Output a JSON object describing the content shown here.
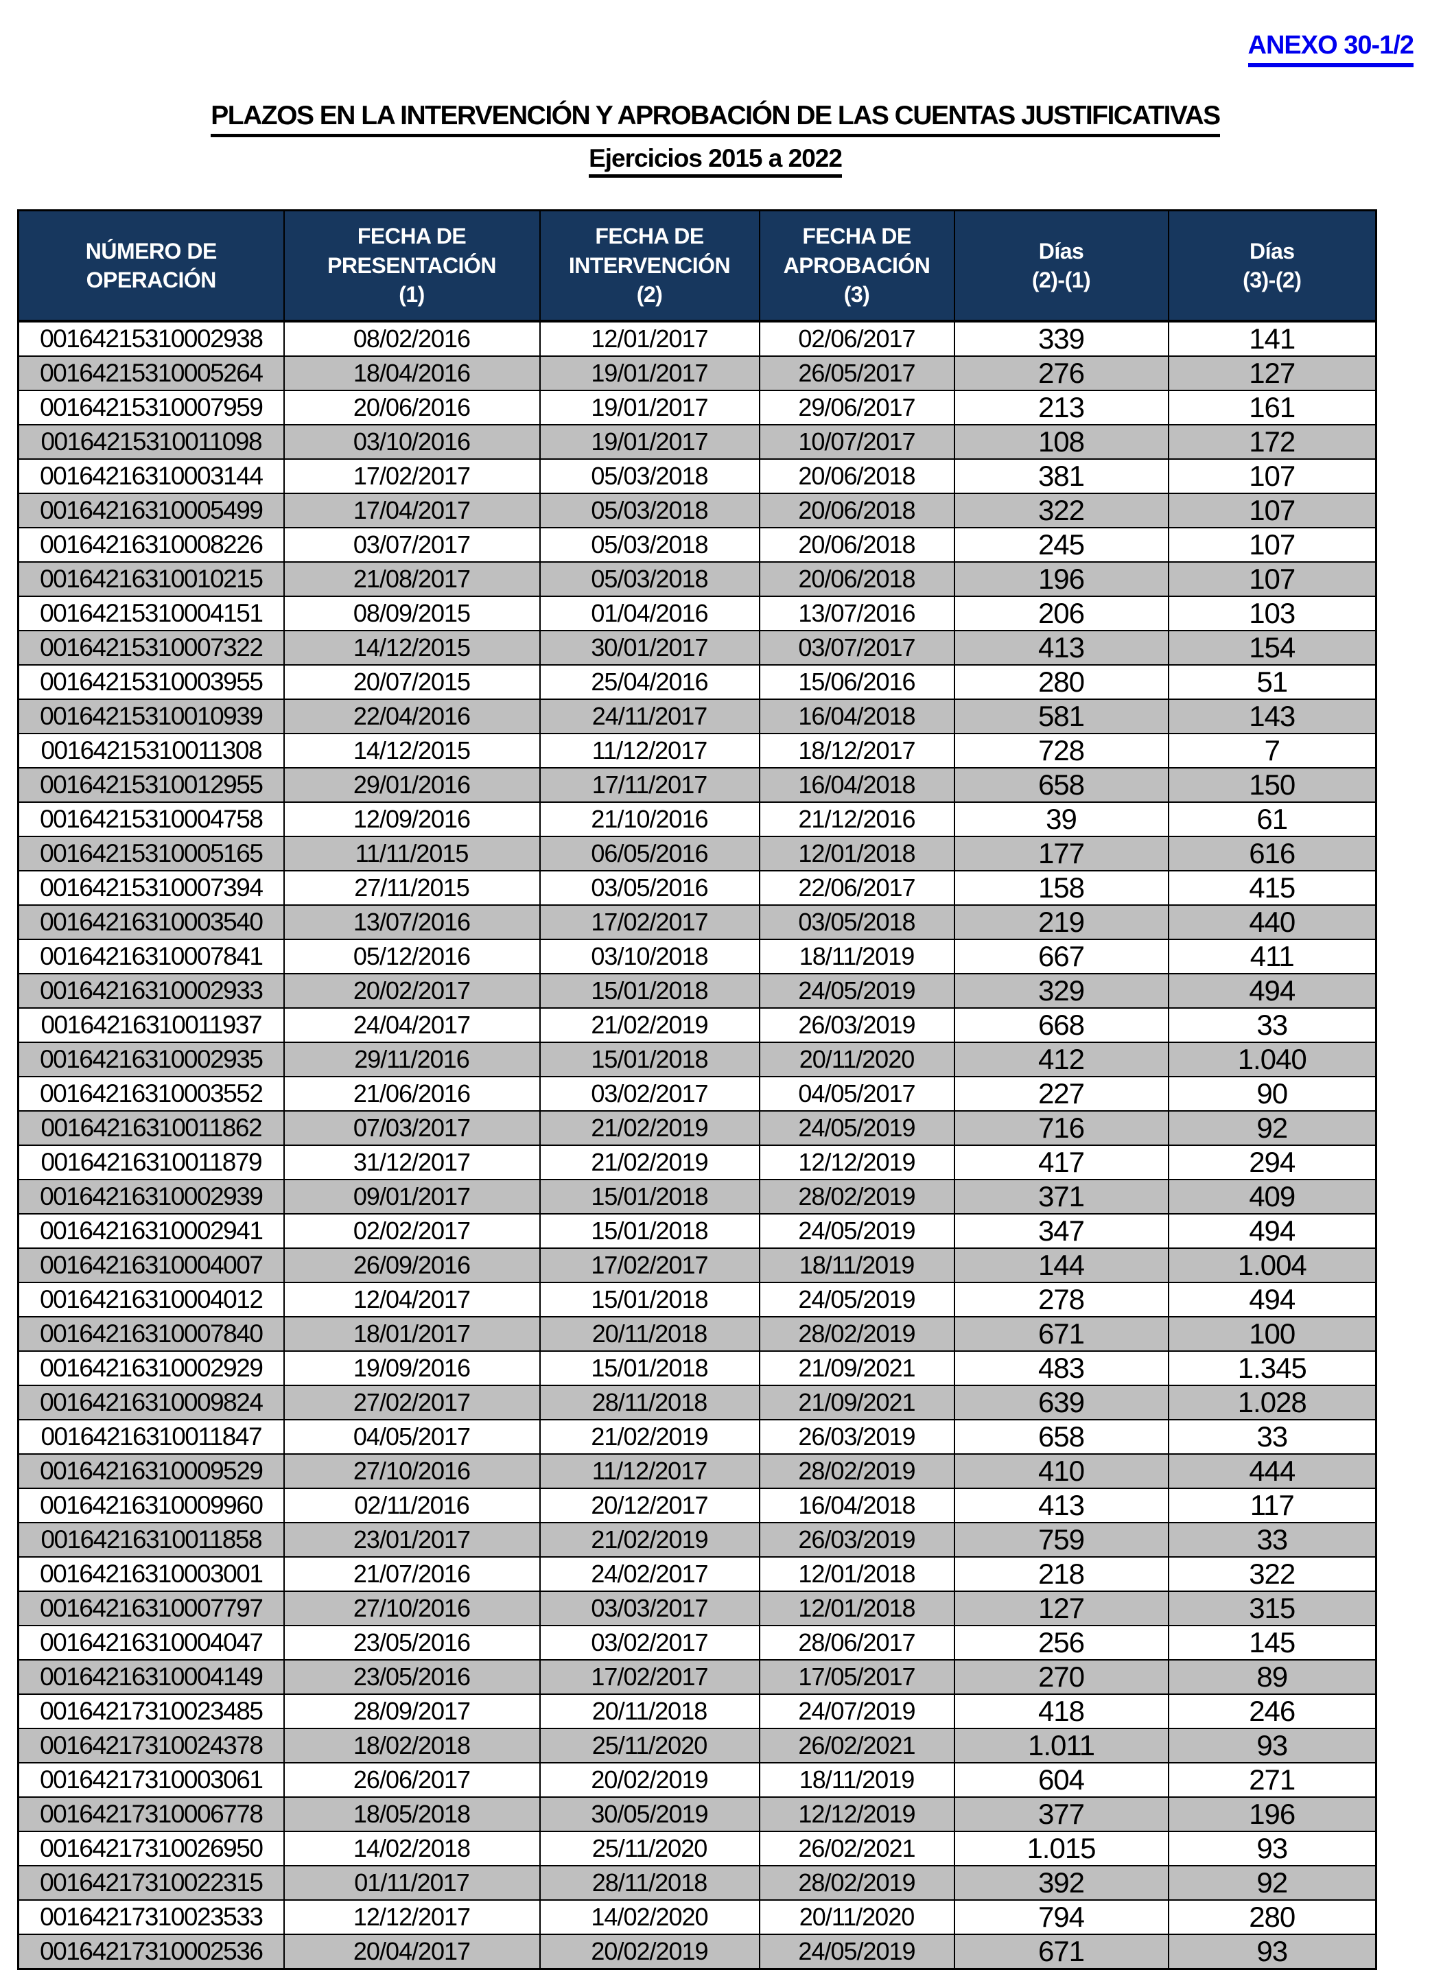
{
  "meta": {
    "anexo_label": "ANEXO 30-1/2",
    "title": "PLAZOS EN LA INTERVENCIÓN Y APROBACIÓN DE LAS CUENTAS JUSTIFICATIVAS",
    "subtitle": "Ejercicios 2015 a 2022"
  },
  "colors": {
    "header_bg": "#17375e",
    "header_text": "#ffffff",
    "alt_row_bg": "#bfbfbf",
    "link_blue": "#0000ee",
    "border": "#000000"
  },
  "table": {
    "columns": [
      {
        "id": "numero_operacion",
        "label": "NÚMERO DE\nOPERACIÓN"
      },
      {
        "id": "fecha_presentacion",
        "label": "FECHA DE\nPRESENTACIÓN\n(1)"
      },
      {
        "id": "fecha_intervencion",
        "label": "FECHA DE\nINTERVENCIÓN\n(2)"
      },
      {
        "id": "fecha_aprobacion",
        "label": "FECHA DE\nAPROBACIÓN\n(3)"
      },
      {
        "id": "dias_2_1",
        "label": "Días\n(2)-(1)"
      },
      {
        "id": "dias_3_2",
        "label": "Días\n(3)-(2)"
      }
    ],
    "rows": [
      [
        "00164215310002938",
        "08/02/2016",
        "12/01/2017",
        "02/06/2017",
        "339",
        "141"
      ],
      [
        "00164215310005264",
        "18/04/2016",
        "19/01/2017",
        "26/05/2017",
        "276",
        "127"
      ],
      [
        "00164215310007959",
        "20/06/2016",
        "19/01/2017",
        "29/06/2017",
        "213",
        "161"
      ],
      [
        "00164215310011098",
        "03/10/2016",
        "19/01/2017",
        "10/07/2017",
        "108",
        "172"
      ],
      [
        "00164216310003144",
        "17/02/2017",
        "05/03/2018",
        "20/06/2018",
        "381",
        "107"
      ],
      [
        "00164216310005499",
        "17/04/2017",
        "05/03/2018",
        "20/06/2018",
        "322",
        "107"
      ],
      [
        "00164216310008226",
        "03/07/2017",
        "05/03/2018",
        "20/06/2018",
        "245",
        "107"
      ],
      [
        "00164216310010215",
        "21/08/2017",
        "05/03/2018",
        "20/06/2018",
        "196",
        "107"
      ],
      [
        "00164215310004151",
        "08/09/2015",
        "01/04/2016",
        "13/07/2016",
        "206",
        "103"
      ],
      [
        "00164215310007322",
        "14/12/2015",
        "30/01/2017",
        "03/07/2017",
        "413",
        "154"
      ],
      [
        "00164215310003955",
        "20/07/2015",
        "25/04/2016",
        "15/06/2016",
        "280",
        "51"
      ],
      [
        "00164215310010939",
        "22/04/2016",
        "24/11/2017",
        "16/04/2018",
        "581",
        "143"
      ],
      [
        "00164215310011308",
        "14/12/2015",
        "11/12/2017",
        "18/12/2017",
        "728",
        "7"
      ],
      [
        "00164215310012955",
        "29/01/2016",
        "17/11/2017",
        "16/04/2018",
        "658",
        "150"
      ],
      [
        "00164215310004758",
        "12/09/2016",
        "21/10/2016",
        "21/12/2016",
        "39",
        "61"
      ],
      [
        "00164215310005165",
        "11/11/2015",
        "06/05/2016",
        "12/01/2018",
        "177",
        "616"
      ],
      [
        "00164215310007394",
        "27/11/2015",
        "03/05/2016",
        "22/06/2017",
        "158",
        "415"
      ],
      [
        "00164216310003540",
        "13/07/2016",
        "17/02/2017",
        "03/05/2018",
        "219",
        "440"
      ],
      [
        "00164216310007841",
        "05/12/2016",
        "03/10/2018",
        "18/11/2019",
        "667",
        "411"
      ],
      [
        "00164216310002933",
        "20/02/2017",
        "15/01/2018",
        "24/05/2019",
        "329",
        "494"
      ],
      [
        "00164216310011937",
        "24/04/2017",
        "21/02/2019",
        "26/03/2019",
        "668",
        "33"
      ],
      [
        "00164216310002935",
        "29/11/2016",
        "15/01/2018",
        "20/11/2020",
        "412",
        "1.040"
      ],
      [
        "00164216310003552",
        "21/06/2016",
        "03/02/2017",
        "04/05/2017",
        "227",
        "90"
      ],
      [
        "00164216310011862",
        "07/03/2017",
        "21/02/2019",
        "24/05/2019",
        "716",
        "92"
      ],
      [
        "00164216310011879",
        "31/12/2017",
        "21/02/2019",
        "12/12/2019",
        "417",
        "294"
      ],
      [
        "00164216310002939",
        "09/01/2017",
        "15/01/2018",
        "28/02/2019",
        "371",
        "409"
      ],
      [
        "00164216310002941",
        "02/02/2017",
        "15/01/2018",
        "24/05/2019",
        "347",
        "494"
      ],
      [
        "00164216310004007",
        "26/09/2016",
        "17/02/2017",
        "18/11/2019",
        "144",
        "1.004"
      ],
      [
        "00164216310004012",
        "12/04/2017",
        "15/01/2018",
        "24/05/2019",
        "278",
        "494"
      ],
      [
        "00164216310007840",
        "18/01/2017",
        "20/11/2018",
        "28/02/2019",
        "671",
        "100"
      ],
      [
        "00164216310002929",
        "19/09/2016",
        "15/01/2018",
        "21/09/2021",
        "483",
        "1.345"
      ],
      [
        "00164216310009824",
        "27/02/2017",
        "28/11/2018",
        "21/09/2021",
        "639",
        "1.028"
      ],
      [
        "00164216310011847",
        "04/05/2017",
        "21/02/2019",
        "26/03/2019",
        "658",
        "33"
      ],
      [
        "00164216310009529",
        "27/10/2016",
        "11/12/2017",
        "28/02/2019",
        "410",
        "444"
      ],
      [
        "00164216310009960",
        "02/11/2016",
        "20/12/2017",
        "16/04/2018",
        "413",
        "117"
      ],
      [
        "00164216310011858",
        "23/01/2017",
        "21/02/2019",
        "26/03/2019",
        "759",
        "33"
      ],
      [
        "00164216310003001",
        "21/07/2016",
        "24/02/2017",
        "12/01/2018",
        "218",
        "322"
      ],
      [
        "00164216310007797",
        "27/10/2016",
        "03/03/2017",
        "12/01/2018",
        "127",
        "315"
      ],
      [
        "00164216310004047",
        "23/05/2016",
        "03/02/2017",
        "28/06/2017",
        "256",
        "145"
      ],
      [
        "00164216310004149",
        "23/05/2016",
        "17/02/2017",
        "17/05/2017",
        "270",
        "89"
      ],
      [
        "00164217310023485",
        "28/09/2017",
        "20/11/2018",
        "24/07/2019",
        "418",
        "246"
      ],
      [
        "00164217310024378",
        "18/02/2018",
        "25/11/2020",
        "26/02/2021",
        "1.011",
        "93"
      ],
      [
        "00164217310003061",
        "26/06/2017",
        "20/02/2019",
        "18/11/2019",
        "604",
        "271"
      ],
      [
        "00164217310006778",
        "18/05/2018",
        "30/05/2019",
        "12/12/2019",
        "377",
        "196"
      ],
      [
        "00164217310026950",
        "14/02/2018",
        "25/11/2020",
        "26/02/2021",
        "1.015",
        "93"
      ],
      [
        "00164217310022315",
        "01/11/2017",
        "28/11/2018",
        "28/02/2019",
        "392",
        "92"
      ],
      [
        "00164217310023533",
        "12/12/2017",
        "14/02/2020",
        "20/11/2020",
        "794",
        "280"
      ],
      [
        "00164217310002536",
        "20/04/2017",
        "20/02/2019",
        "24/05/2019",
        "671",
        "93"
      ]
    ]
  }
}
